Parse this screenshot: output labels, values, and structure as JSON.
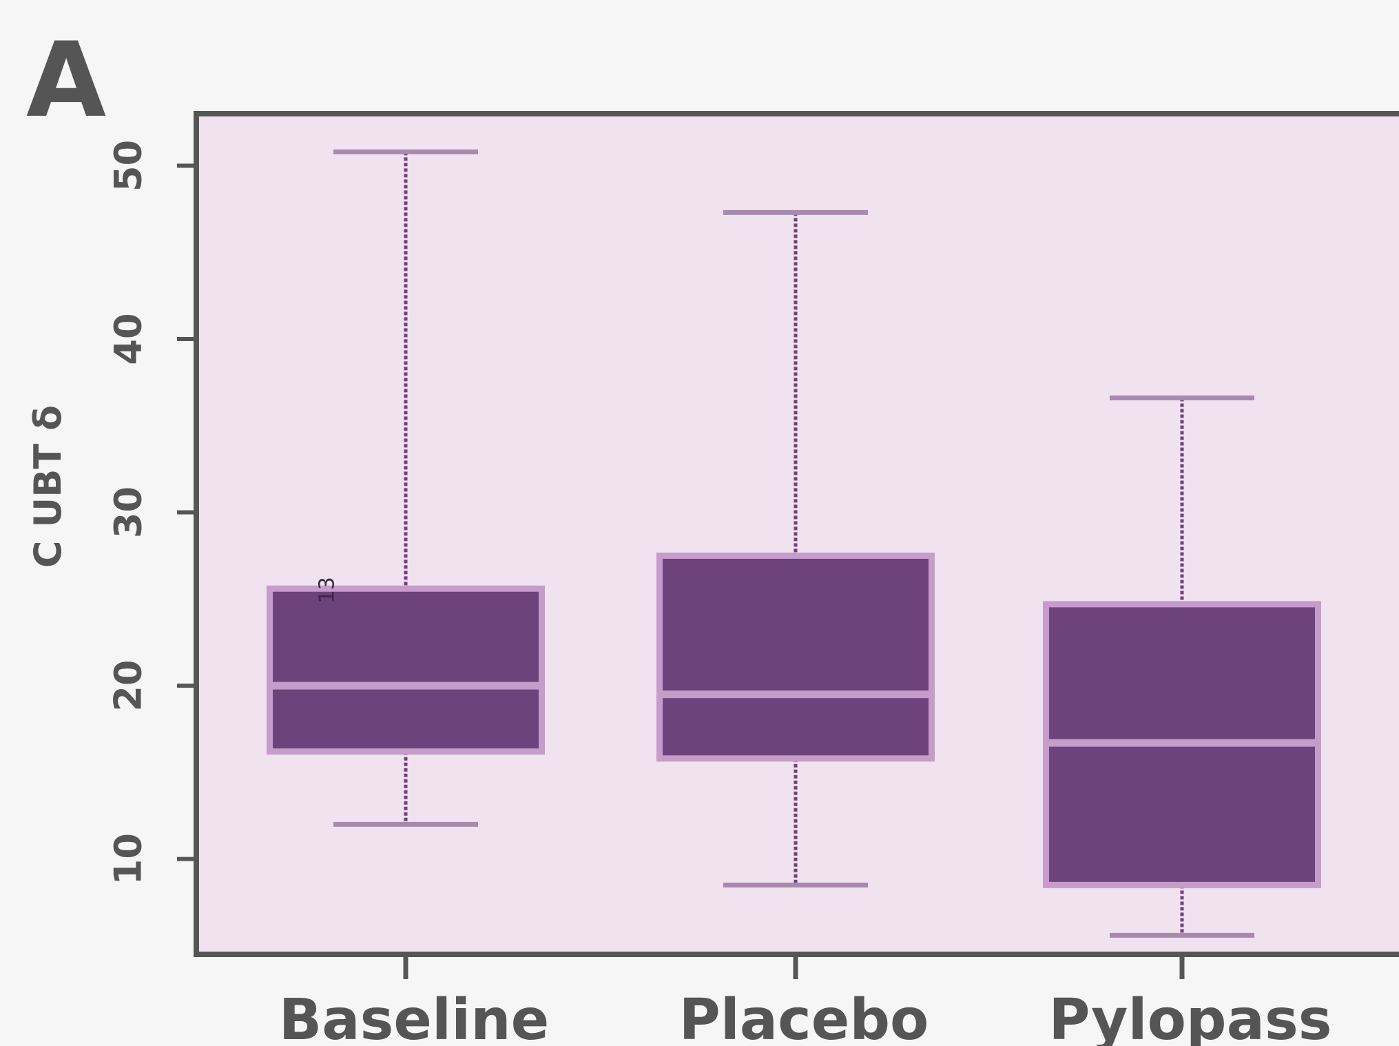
{
  "panel_label": "A",
  "colors": {
    "background": "#f6f6f6",
    "plot_fill": "#f0e2ef",
    "frame": "#555555",
    "box_fill": "#6e427b",
    "box_edge": "#c69ccb",
    "whisker": "#a78aae",
    "whisker_line": "#6e427b",
    "text": "#555555"
  },
  "chart_data": {
    "type": "boxplot",
    "ylabel": "C UBT δ",
    "ylim": [
      4.5,
      53
    ],
    "yticks": [
      10,
      20,
      30,
      40,
      50
    ],
    "grid": false,
    "categories": [
      "Baseline",
      "Placebo",
      "Pylopass"
    ],
    "boxes": [
      {
        "category": "Baseline",
        "whisker_low": 12,
        "q1": 16.2,
        "median": 20,
        "q3": 25.6,
        "whisker_high": 50.8
      },
      {
        "category": "Placebo",
        "whisker_low": 8.5,
        "q1": 15.8,
        "median": 19.5,
        "q3": 27.5,
        "whisker_high": 47.3
      },
      {
        "category": "Pylopass",
        "whisker_low": 5.6,
        "q1": 8.5,
        "median": 16.7,
        "q3": 24.7,
        "whisker_high": 36.6
      }
    ],
    "annotations": [
      {
        "text": "13",
        "category": "Baseline",
        "y": 25.6
      }
    ]
  }
}
